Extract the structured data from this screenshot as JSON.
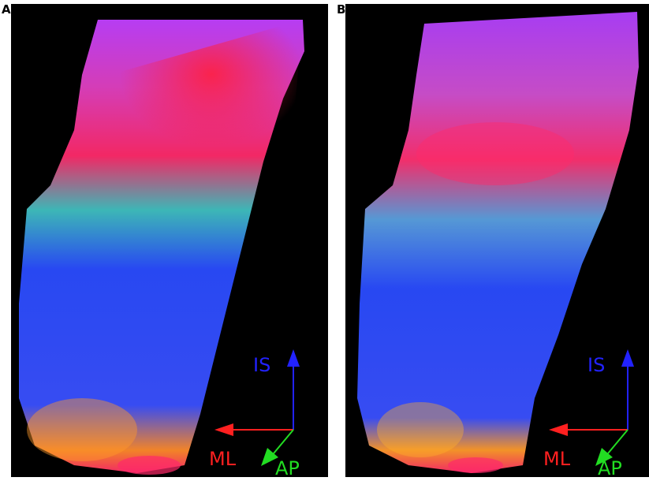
{
  "panels": [
    {
      "letter": "A",
      "axes": {
        "is": "IS",
        "ml": "ML",
        "ap": "AP"
      }
    },
    {
      "letter": "B",
      "axes": {
        "is": "IS",
        "ml": "ML",
        "ap": "AP"
      }
    }
  ],
  "colors": {
    "background": "#000000",
    "is_axis": "#2222ff",
    "ml_axis": "#ff2020",
    "ap_axis": "#22dd22",
    "fiber_upper": "#ff2a6a",
    "fiber_upper_alt": "#b040ff",
    "fiber_lower": "#2a4cff",
    "fiber_lower_alt": "#2ad0ff",
    "fiber_base": "#ff8a2a"
  },
  "icons": [
    "is-arrow-icon",
    "ml-arrow-icon",
    "ap-arrow-icon"
  ]
}
